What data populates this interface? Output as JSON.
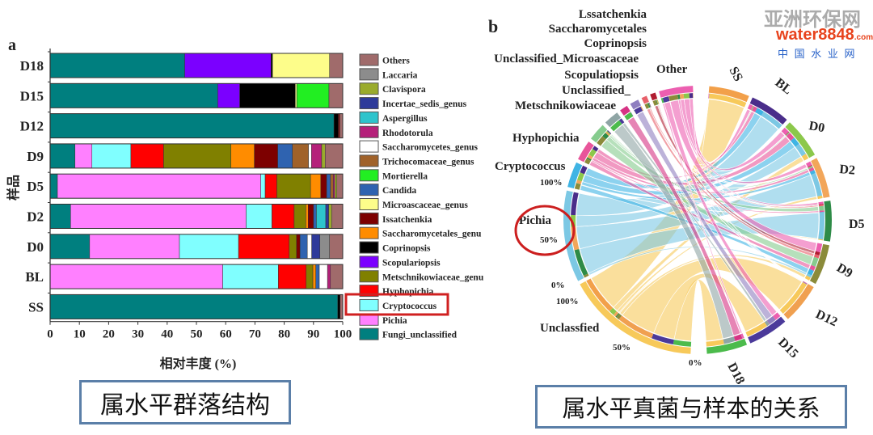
{
  "panel_a": {
    "letter": "a",
    "caption": "属水平群落结构"
  },
  "panel_b": {
    "letter": "b",
    "caption": "属水平真菌与样本的关系"
  },
  "watermark": {
    "site_cn": "亚洲环保网",
    "brand": "water8848",
    "domain": ".com",
    "site2_cn": "中 国 水 业 网"
  },
  "chart_data": [
    {
      "type": "bar",
      "orientation": "horizontal",
      "stacked": true,
      "xlabel": "相对丰度 (%)",
      "ylabel": "样品",
      "xlim": [
        0,
        100
      ],
      "xticks": [
        "0",
        "10",
        "20",
        "30",
        "40",
        "50",
        "60",
        "70",
        "80",
        "90",
        "100"
      ],
      "categories": [
        "D18",
        "D15",
        "D12",
        "D9",
        "D5",
        "D2",
        "D0",
        "BL",
        "SS"
      ],
      "legend_position": "right",
      "highlighted_legend_entry": "Cryptococcus",
      "series": [
        {
          "name": "Fungi_unclassified",
          "color": "#007f7f",
          "values": [
            46,
            57.3,
            97,
            8.5,
            2.5,
            7,
            13.5,
            0,
            98.3
          ]
        },
        {
          "name": "Pichia",
          "color": "#ff80ff",
          "values": [
            0,
            0,
            0,
            5.8,
            69.5,
            60,
            30.7,
            59,
            0
          ]
        },
        {
          "name": "Cryptococcus",
          "color": "#80ffff",
          "values": [
            0,
            0,
            0,
            13.3,
            1.5,
            8.8,
            20.2,
            19,
            0
          ]
        },
        {
          "name": "Hyphopichia",
          "color": "#ff0000",
          "values": [
            0,
            0,
            0,
            11.2,
            4,
            7.6,
            17.3,
            9.5,
            0
          ]
        },
        {
          "name": "Metschnikowiaceae_genu",
          "color": "#808000",
          "values": [
            0,
            0,
            0,
            23,
            11.5,
            4,
            2.5,
            2.3,
            0
          ]
        },
        {
          "name": "Scopulariopsis",
          "color": "#7b00ff",
          "values": [
            29.5,
            7.5,
            0,
            0,
            0,
            0,
            0,
            0,
            0
          ]
        },
        {
          "name": "Coprinopsis",
          "color": "#000000",
          "values": [
            0.5,
            19,
            1.5,
            0,
            0,
            0,
            0,
            0,
            0.8
          ]
        },
        {
          "name": "Saccharomycetales_genu",
          "color": "#ff8c00",
          "values": [
            0,
            0,
            0,
            8,
            3.5,
            0.8,
            0,
            1,
            0
          ]
        },
        {
          "name": "Issatchenkia",
          "color": "#7d0000",
          "values": [
            0,
            0,
            0.5,
            8,
            2,
            1.8,
            1.2,
            0,
            0
          ]
        },
        {
          "name": "Microascaceae_genus",
          "color": "#fdfd8a",
          "values": [
            19.5,
            0.5,
            0,
            0,
            0,
            0,
            0,
            0,
            0
          ]
        },
        {
          "name": "Candida",
          "color": "#2f63b0",
          "values": [
            0,
            0,
            0,
            5,
            1.3,
            1,
            2.5,
            1.2,
            0
          ]
        },
        {
          "name": "Mortierella",
          "color": "#22ee22",
          "values": [
            0,
            11,
            0,
            0,
            0,
            0,
            0,
            0,
            0
          ]
        },
        {
          "name": "Trichocomaceae_genus",
          "color": "#a0622a",
          "values": [
            0,
            0,
            0,
            5.5,
            1,
            0,
            0,
            0,
            0
          ]
        },
        {
          "name": "Saccharomycetes_genus",
          "color": "#ffffff",
          "values": [
            0,
            0,
            0,
            1,
            0,
            0,
            1.5,
            2.8,
            0
          ]
        },
        {
          "name": "Rhodotorula",
          "color": "#b5207a",
          "values": [
            0,
            0,
            0,
            3.5,
            0.5,
            0,
            0,
            1,
            0
          ]
        },
        {
          "name": "Aspergillus",
          "color": "#2ec4cc",
          "values": [
            0,
            0,
            0,
            0,
            0,
            3.2,
            0,
            0,
            0
          ]
        },
        {
          "name": "Incertae_sedis_genus",
          "color": "#2e3a9a",
          "values": [
            0,
            0,
            0,
            0,
            0,
            1,
            2.8,
            0,
            0
          ]
        },
        {
          "name": "Clavispora",
          "color": "#9aab2c",
          "values": [
            0,
            0,
            0,
            1.2,
            0.7,
            1,
            0,
            0,
            0
          ]
        },
        {
          "name": "Laccaria",
          "color": "#8c8c8c",
          "values": [
            0,
            0,
            0,
            0,
            0,
            0,
            3.3,
            0,
            0
          ]
        },
        {
          "name": "Others",
          "color": "#a06b6b",
          "values": [
            4.5,
            4.7,
            1,
            6,
            2,
            3.8,
            4.5,
            4.2,
            0.9
          ]
        }
      ]
    },
    {
      "type": "chord",
      "samples": [
        {
          "label": "SS",
          "color": "#f2a04a"
        },
        {
          "label": "BL",
          "color": "#4a2d8a"
        },
        {
          "label": "D0",
          "color": "#8cc84b"
        },
        {
          "label": "D2",
          "color": "#f2a65a"
        },
        {
          "label": "D5",
          "color": "#2e8b47"
        },
        {
          "label": "D9",
          "color": "#8b8b3a"
        },
        {
          "label": "D12",
          "color": "#f0a050"
        },
        {
          "label": "D15",
          "color": "#4b3a9a"
        },
        {
          "label": "D18",
          "color": "#4cbb4c"
        }
      ],
      "genera": [
        {
          "label": "Unclassfied",
          "color": "#f7c95a"
        },
        {
          "label": "Pichia",
          "color": "#7cc8e4"
        },
        {
          "label": "Cryptococcus",
          "color": "#3fb4e4"
        },
        {
          "label": "Hyphopichia",
          "color": "#e8559a"
        },
        {
          "label": "Unclassified_ Metschnikowiaceae",
          "label_lines": [
            "Unclassified_",
            "Metschnikowiaceae"
          ],
          "color": "#86cc8e"
        },
        {
          "label": "Scopulatiopsis",
          "color": "#8fa5a5"
        },
        {
          "label": "Unclassified_Microascaceae",
          "color": "#d63384"
        },
        {
          "label": "Coprinopsis",
          "color": "#8f7fc0"
        },
        {
          "label": "Saccharomycetales",
          "color": "#e8606a"
        },
        {
          "label": "Lssatchenkia",
          "color": "#b01c30"
        },
        {
          "label": "Other",
          "color": "#ec5fb0"
        }
      ],
      "axis_ticks": [
        "0%",
        "50%",
        "100%"
      ],
      "highlighted_group": "Pichia"
    }
  ]
}
